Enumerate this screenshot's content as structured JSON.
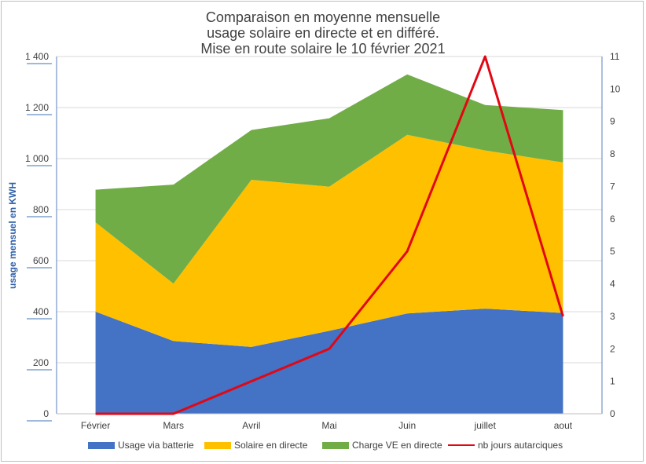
{
  "chart_data": {
    "type": "area",
    "title_lines": [
      "Comparaison en moyenne mensuelle",
      "usage solaire en directe et en différé.",
      "Mise en route solaire le 10 février 2021"
    ],
    "ylabel": "usage mensuel en KWH",
    "categories": [
      "Février",
      "Mars",
      "Avril",
      "Mai",
      "Juin",
      "juillet",
      "aout"
    ],
    "y_left": {
      "min": 0,
      "max": 1400,
      "ticks": [
        "0",
        "200",
        "400",
        "600",
        "800",
        "1 000",
        "1 200",
        "1 400"
      ]
    },
    "y_right": {
      "min": 0,
      "max": 11,
      "ticks": [
        "0",
        "1",
        "2",
        "3",
        "4",
        "5",
        "6",
        "7",
        "8",
        "9",
        "10",
        "11"
      ]
    },
    "stacked": true,
    "series": [
      {
        "name": "Usage via batterie",
        "color": "#4472c4",
        "values": [
          400,
          285,
          262,
          325,
          393,
          412,
          395
        ]
      },
      {
        "name": "Solaire en directe",
        "color": "#ffc000",
        "values": [
          350,
          225,
          655,
          565,
          700,
          620,
          590
        ]
      },
      {
        "name": "Charge VE en directe",
        "color": "#70ad47",
        "values": [
          128,
          388,
          195,
          268,
          237,
          178,
          205
        ]
      }
    ],
    "line_series": [
      {
        "name": "nb jours autarciques",
        "color": "#e30613",
        "axis": "right",
        "values": [
          0,
          0,
          1,
          2,
          5,
          11,
          3
        ]
      }
    ],
    "grid": true,
    "legend_position": "bottom"
  }
}
